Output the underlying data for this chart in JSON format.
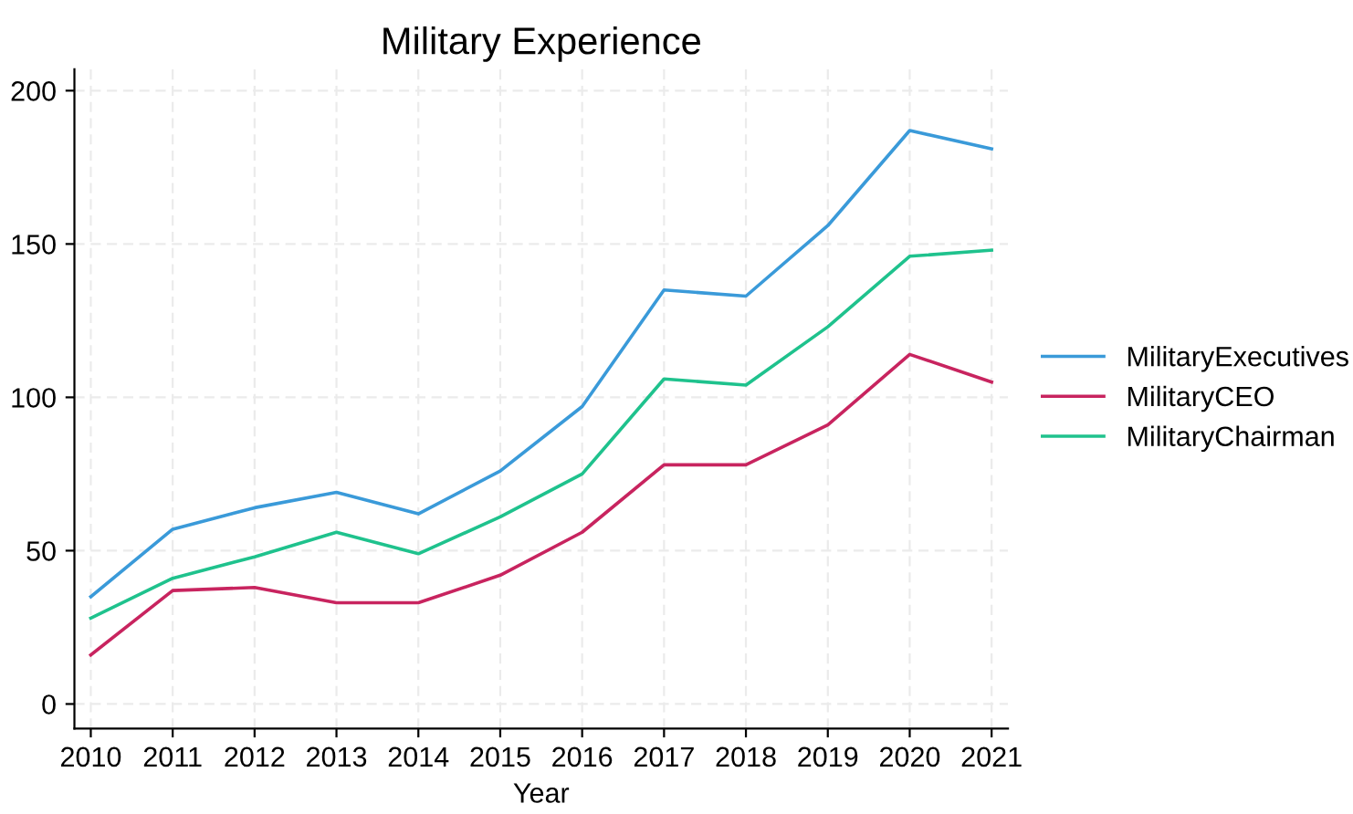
{
  "chart_data": {
    "type": "line",
    "title": "Military Experience",
    "xlabel": "Year",
    "x": [
      2010,
      2011,
      2012,
      2013,
      2014,
      2015,
      2016,
      2017,
      2018,
      2019,
      2020,
      2021
    ],
    "series": [
      {
        "name": "MilitaryExecutives",
        "color": "#3a9ad9",
        "values": [
          35,
          57,
          64,
          69,
          62,
          76,
          97,
          135,
          133,
          156,
          187,
          181
        ]
      },
      {
        "name": "MilitaryCEO",
        "color": "#c8245f",
        "values": [
          16,
          37,
          38,
          33,
          33,
          42,
          56,
          78,
          78,
          91,
          114,
          105
        ]
      },
      {
        "name": "MilitaryChairman",
        "color": "#1fc28d",
        "values": [
          28,
          41,
          48,
          56,
          49,
          61,
          75,
          106,
          104,
          123,
          146,
          148
        ]
      }
    ],
    "xlim": [
      2009.8,
      2021.2
    ],
    "xticks": [
      2010,
      2011,
      2012,
      2013,
      2014,
      2015,
      2016,
      2017,
      2018,
      2019,
      2020,
      2021
    ],
    "ylim": [
      -8,
      207
    ],
    "yticks": [
      0,
      50,
      100,
      150,
      200
    ],
    "grid": true,
    "legend": "right",
    "marker": "none",
    "line_style": "solid"
  }
}
